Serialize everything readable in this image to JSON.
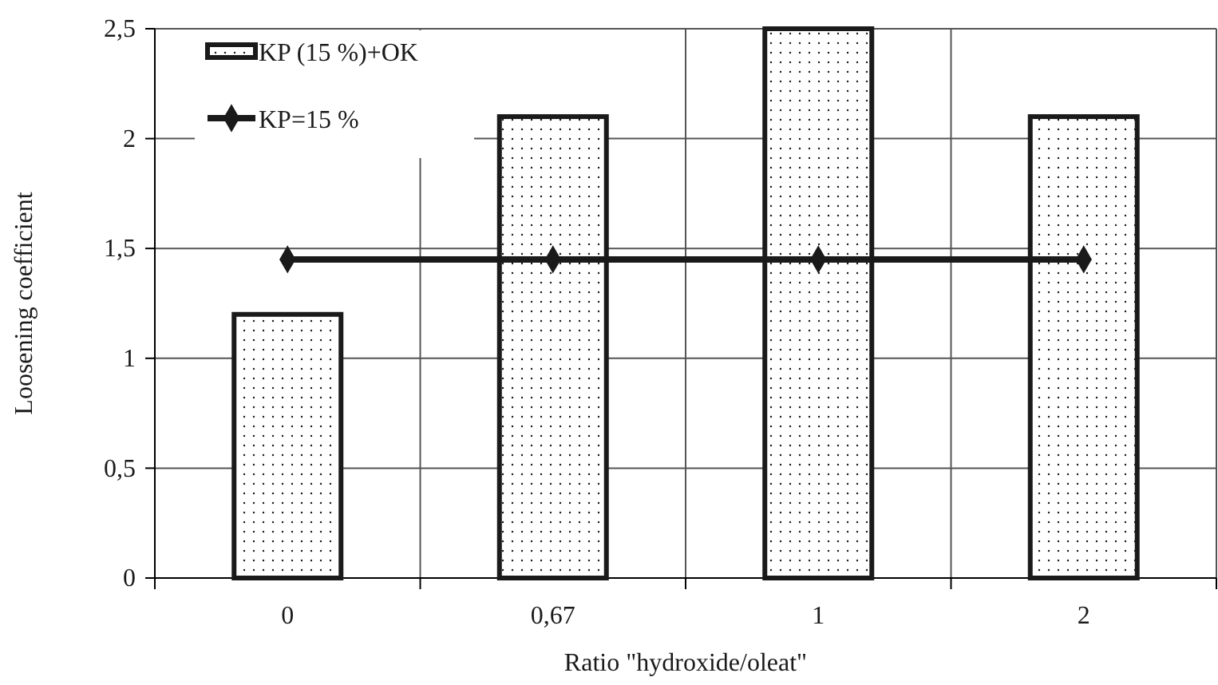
{
  "chart_data": {
    "type": "bar",
    "xlabel": "Ratio \"hydroxide/oleat\"",
    "ylabel": "Loosening coefficient",
    "categories": [
      "0",
      "0,67",
      "1",
      "2"
    ],
    "series": [
      {
        "name": "KP (15 %)+OK",
        "color": "#1a1a1a",
        "values": [
          1.2,
          2.1,
          2.5,
          2.1
        ]
      },
      {
        "name": "KP=15 %",
        "type": "line",
        "color": "#1a1a1a",
        "marker": "diamond",
        "values": [
          1.45,
          1.45,
          1.45,
          1.45
        ]
      }
    ],
    "ylim": [
      0,
      2.5
    ],
    "yticks": [
      0,
      {
        "value": 0.5,
        "label": "0,5"
      },
      1,
      {
        "value": 1.5,
        "label": "1,5"
      },
      2,
      {
        "value": 2.5,
        "label": "2,5"
      }
    ],
    "grid": true,
    "legend": "top left"
  }
}
